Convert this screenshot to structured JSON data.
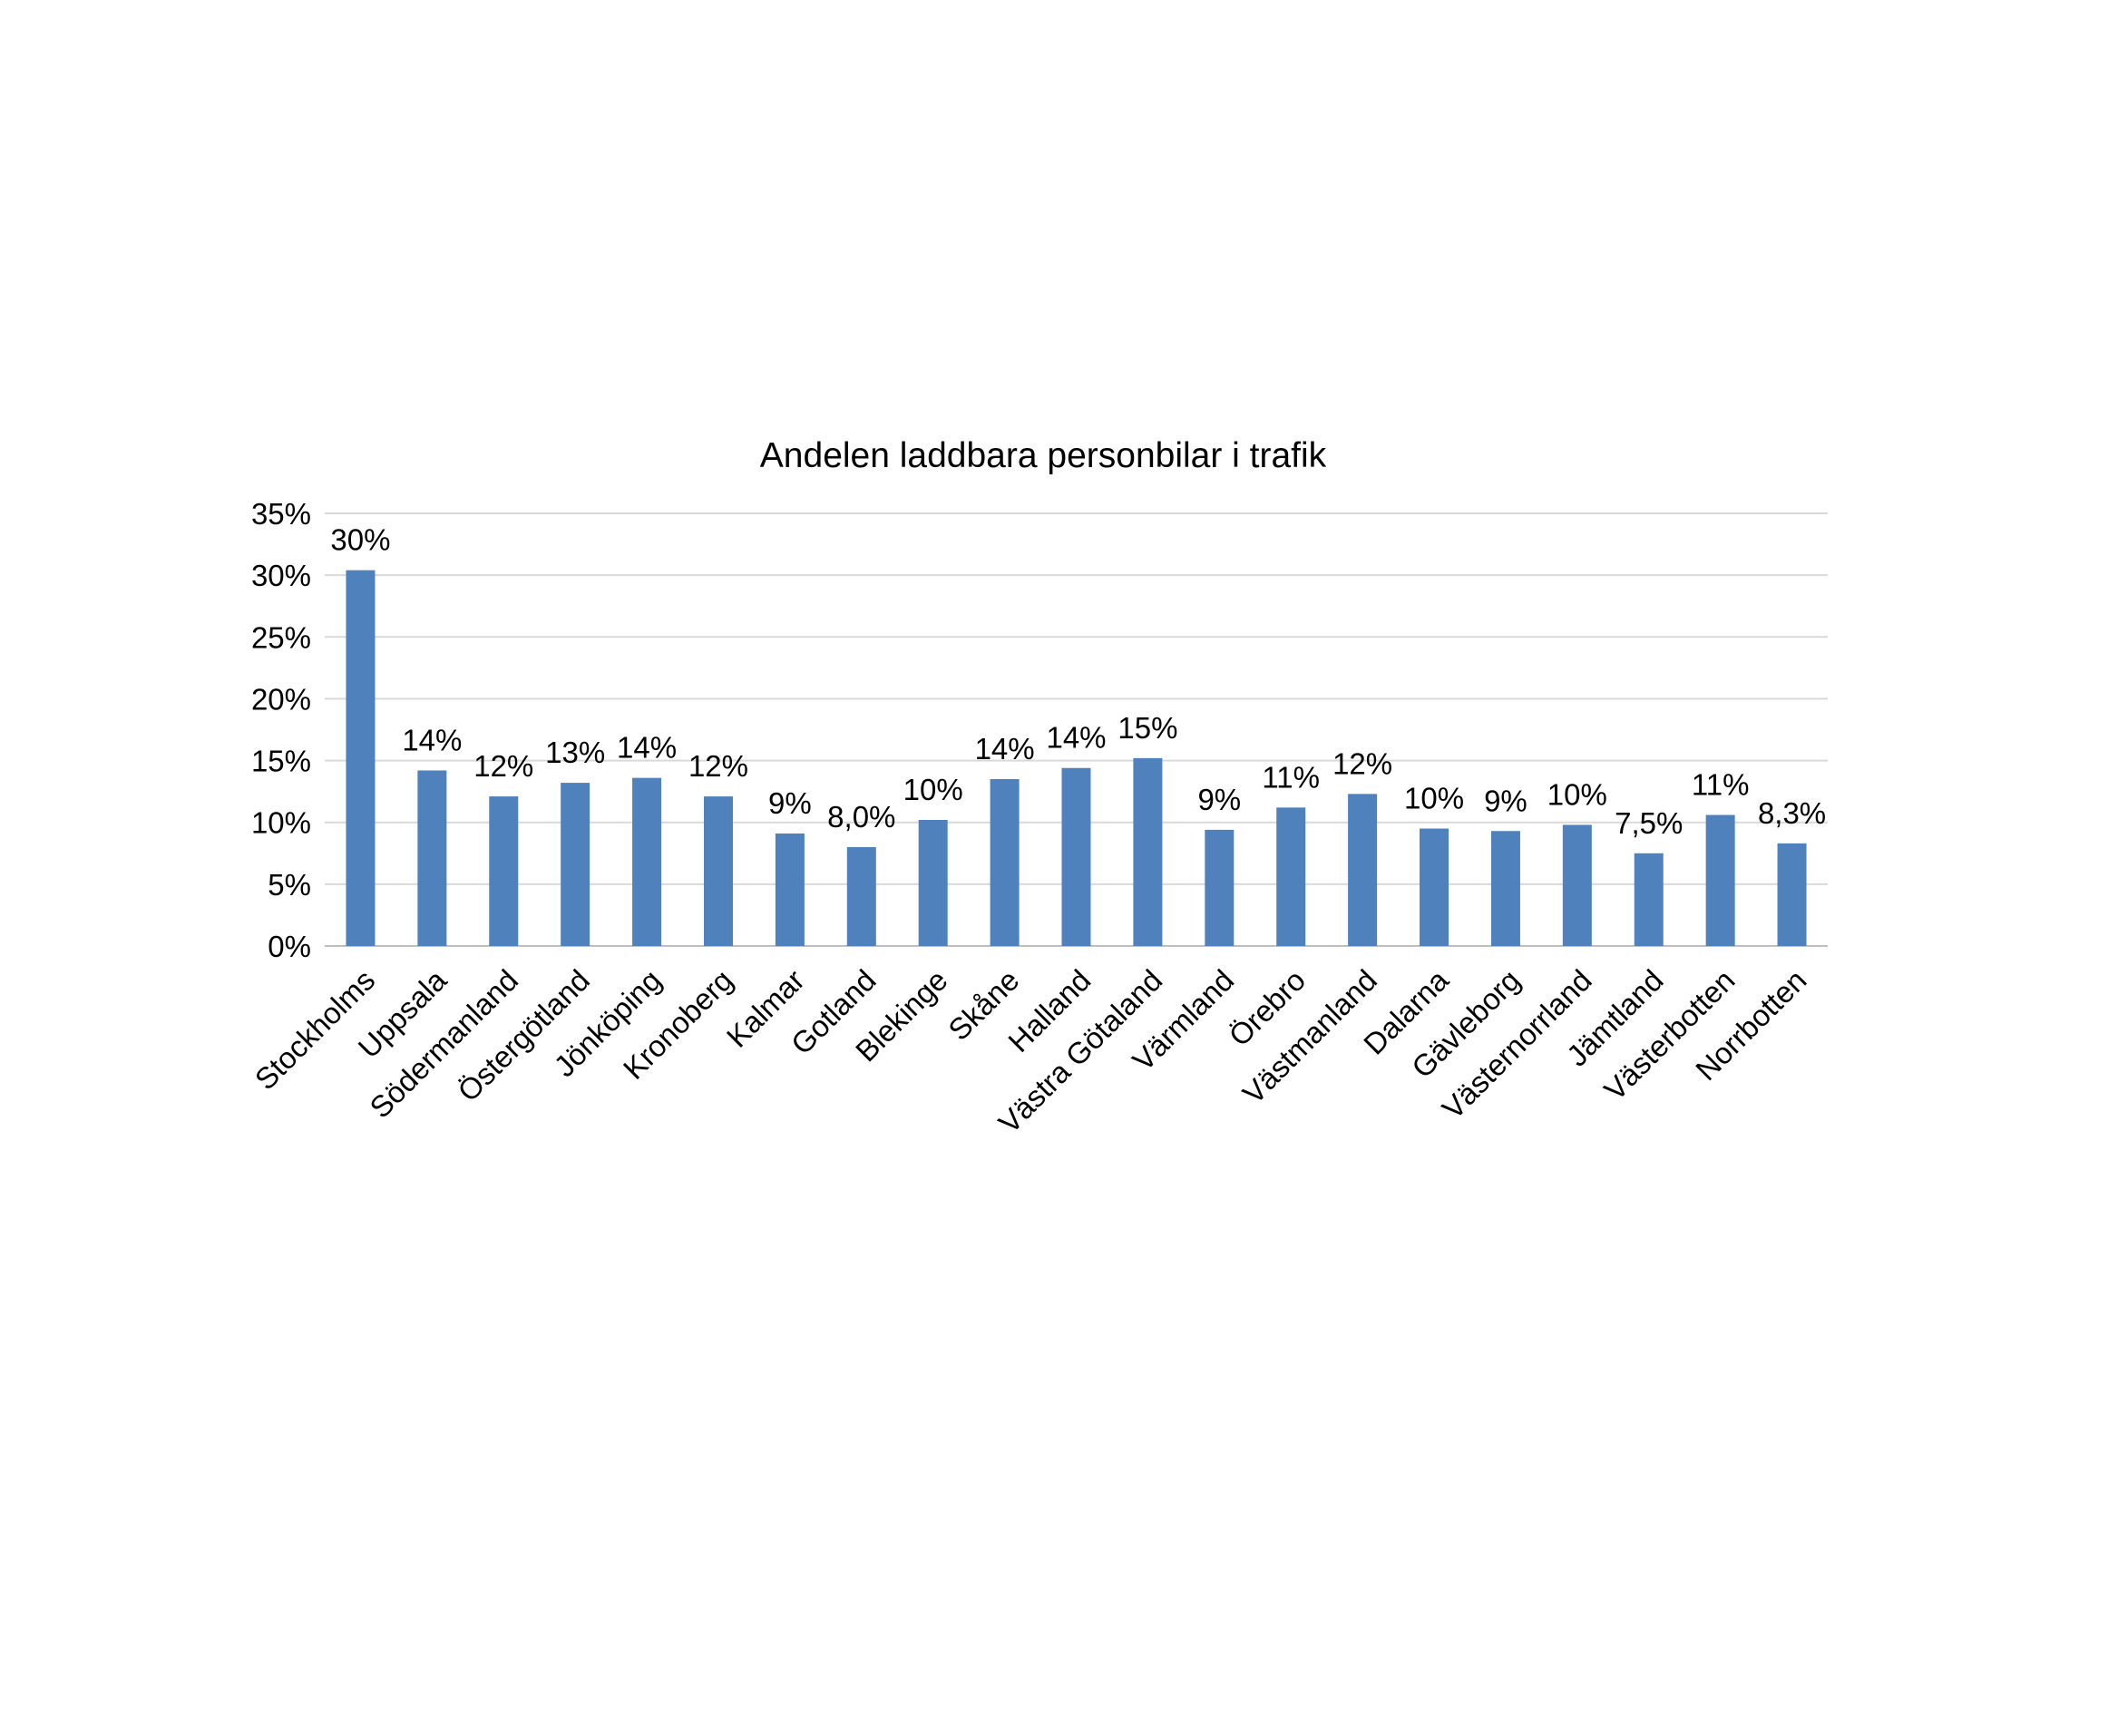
{
  "chart_data": {
    "type": "bar",
    "title": "Andelen laddbara personbilar i trafik",
    "xlabel": "",
    "ylabel": "",
    "ylim": [
      0,
      35
    ],
    "y_ticks": [
      "0%",
      "5%",
      "10%",
      "15%",
      "20%",
      "25%",
      "30%",
      "35%"
    ],
    "grid": true,
    "legend": "none",
    "bar_color": "#4f81bd",
    "categories": [
      "Stockholms",
      "Uppsala",
      "Södermanland",
      "Östergötland",
      "Jönköping",
      "Kronoberg",
      "Kalmar",
      "Gotland",
      "Blekinge",
      "Skåne",
      "Halland",
      "Västra Götaland",
      "Värmland",
      "Örebro",
      "Västmanland",
      "Dalarna",
      "Gävleborg",
      "Västernorrland",
      "Jämtland",
      "Västerbotten",
      "Norrbotten"
    ],
    "values": [
      30.4,
      14.2,
      12.1,
      13.2,
      13.6,
      12.1,
      9.1,
      8.0,
      10.2,
      13.5,
      14.4,
      15.2,
      9.4,
      11.2,
      12.3,
      9.5,
      9.3,
      9.8,
      7.5,
      10.6,
      8.3
    ],
    "data_labels": [
      "30%",
      "14%",
      "12%",
      "13%",
      "14%",
      "12%",
      "9%",
      "8,0%",
      "10%",
      "14%",
      "14%",
      "15%",
      "9%",
      "11%",
      "12%",
      "10%",
      "9%",
      "10%",
      "7,5%",
      "11%",
      "8,3%"
    ]
  }
}
